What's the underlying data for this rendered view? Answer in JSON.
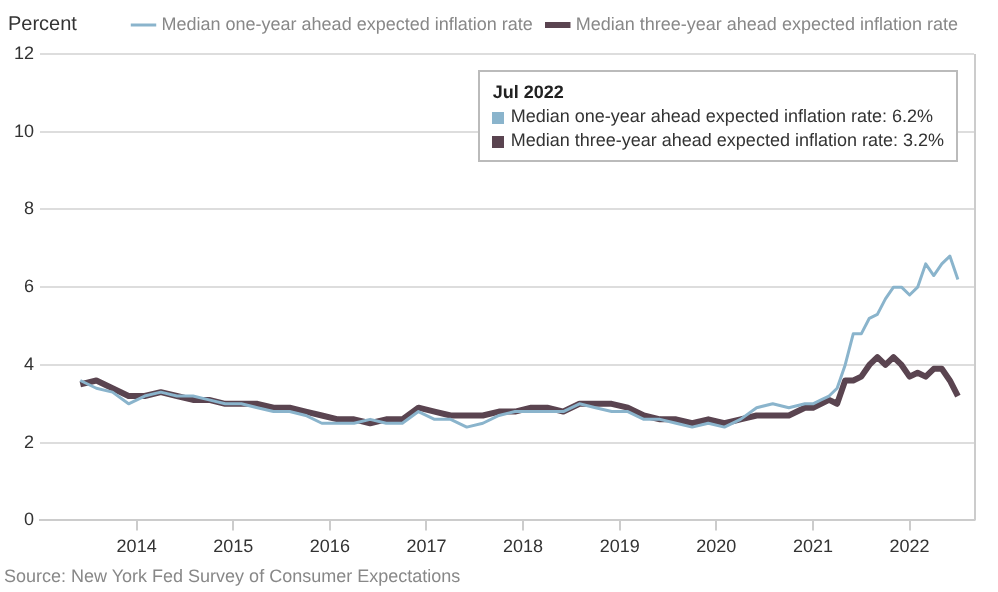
{
  "chart_data": {
    "type": "line",
    "ylabel": "Percent",
    "x": [
      "2013-06",
      "2013-08",
      "2013-10",
      "2013-12",
      "2014-02",
      "2014-04",
      "2014-06",
      "2014-08",
      "2014-10",
      "2014-12",
      "2015-02",
      "2015-04",
      "2015-06",
      "2015-08",
      "2015-10",
      "2015-12",
      "2016-02",
      "2016-04",
      "2016-06",
      "2016-08",
      "2016-10",
      "2016-12",
      "2017-02",
      "2017-04",
      "2017-06",
      "2017-08",
      "2017-10",
      "2017-12",
      "2018-02",
      "2018-04",
      "2018-06",
      "2018-08",
      "2018-10",
      "2018-12",
      "2019-02",
      "2019-04",
      "2019-06",
      "2019-08",
      "2019-10",
      "2019-12",
      "2020-02",
      "2020-04",
      "2020-06",
      "2020-08",
      "2020-10",
      "2020-12",
      "2021-01",
      "2021-02",
      "2021-03",
      "2021-04",
      "2021-05",
      "2021-06",
      "2021-07",
      "2021-08",
      "2021-09",
      "2021-10",
      "2021-11",
      "2021-12",
      "2022-01",
      "2022-02",
      "2022-03",
      "2022-04",
      "2022-05",
      "2022-06",
      "2022-07"
    ],
    "series": [
      {
        "name": "Median one-year ahead expected inflation rate",
        "color": "#8ab4cc",
        "values": [
          3.6,
          3.4,
          3.3,
          3.0,
          3.2,
          3.3,
          3.2,
          3.2,
          3.1,
          3.0,
          3.0,
          2.9,
          2.8,
          2.8,
          2.7,
          2.5,
          2.5,
          2.5,
          2.6,
          2.5,
          2.5,
          2.8,
          2.6,
          2.6,
          2.4,
          2.5,
          2.7,
          2.8,
          2.8,
          2.8,
          2.8,
          3.0,
          2.9,
          2.8,
          2.8,
          2.6,
          2.6,
          2.5,
          2.4,
          2.5,
          2.4,
          2.6,
          2.9,
          3.0,
          2.9,
          3.0,
          3.0,
          3.1,
          3.2,
          3.4,
          4.0,
          4.8,
          4.8,
          5.2,
          5.3,
          5.7,
          6.0,
          6.0,
          5.8,
          6.0,
          6.6,
          6.3,
          6.6,
          6.8,
          6.2
        ]
      },
      {
        "name": "Median three-year ahead expected inflation rate",
        "color": "#5a4450",
        "values": [
          3.5,
          3.6,
          3.4,
          3.2,
          3.2,
          3.3,
          3.2,
          3.1,
          3.1,
          3.0,
          3.0,
          3.0,
          2.9,
          2.9,
          2.8,
          2.7,
          2.6,
          2.6,
          2.5,
          2.6,
          2.6,
          2.9,
          2.8,
          2.7,
          2.7,
          2.7,
          2.8,
          2.8,
          2.9,
          2.9,
          2.8,
          3.0,
          3.0,
          3.0,
          2.9,
          2.7,
          2.6,
          2.6,
          2.5,
          2.6,
          2.5,
          2.6,
          2.7,
          2.7,
          2.7,
          2.9,
          2.9,
          3.0,
          3.1,
          3.0,
          3.6,
          3.6,
          3.7,
          4.0,
          4.2,
          4.0,
          4.2,
          4.0,
          3.7,
          3.8,
          3.7,
          3.9,
          3.9,
          3.6,
          3.2
        ]
      }
    ],
    "xlim": [
      "2013-01",
      "2022-09"
    ],
    "xticks": [
      {
        "value": "2014",
        "label": "2014"
      },
      {
        "value": "2015",
        "label": "2015"
      },
      {
        "value": "2016",
        "label": "2016"
      },
      {
        "value": "2017",
        "label": "2017"
      },
      {
        "value": "2018",
        "label": "2018"
      },
      {
        "value": "2019",
        "label": "2019"
      },
      {
        "value": "2020",
        "label": "2020"
      },
      {
        "value": "2021",
        "label": "2021"
      },
      {
        "value": "2022",
        "label": "2022"
      }
    ],
    "ylim": [
      0,
      12
    ],
    "yticks": [
      0,
      2,
      4,
      6,
      8,
      10,
      12
    ],
    "grid": "y",
    "legend": "top right",
    "marker": "none",
    "annotations": [
      "Jul 2022",
      "Median one-year ahead expected inflation rate: 6.2%",
      "Median three-year ahead expected inflation rate: 3.2%",
      "Source: New York Fed Survey of Consumer Expectations"
    ]
  }
}
